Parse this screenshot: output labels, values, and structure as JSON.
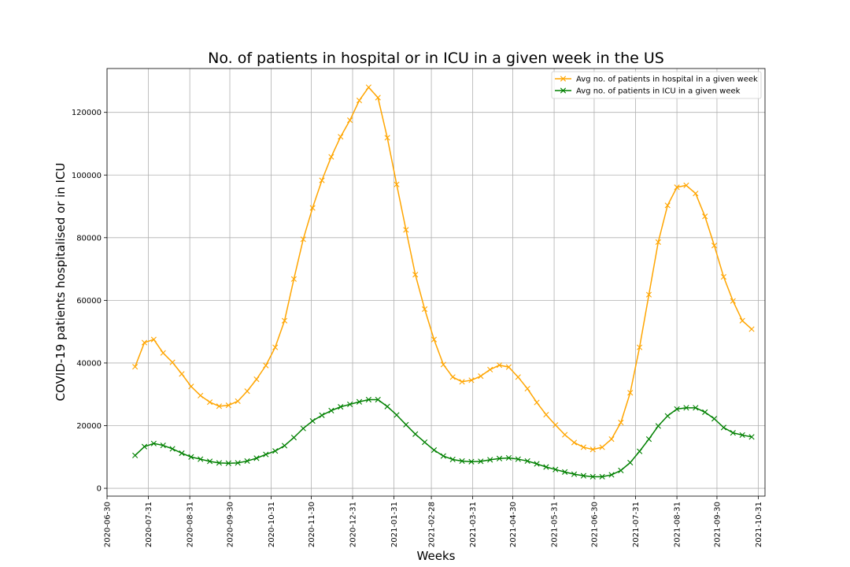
{
  "chart_data": {
    "type": "line",
    "title": "No. of patients in hospital or in ICU in a given week in the US",
    "xlabel": "Weeks",
    "ylabel": "COVID-19 patients hospitalised or in ICU",
    "x_ticks": [
      "2020-06-30",
      "2020-07-31",
      "2020-08-31",
      "2020-09-30",
      "2020-10-31",
      "2020-11-30",
      "2020-12-31",
      "2021-01-31",
      "2021-02-28",
      "2021-03-31",
      "2021-04-30",
      "2021-05-31",
      "2021-06-30",
      "2021-07-31",
      "2021-08-31",
      "2021-09-30",
      "2021-10-31"
    ],
    "y_ticks": [
      0,
      20000,
      40000,
      60000,
      80000,
      100000,
      120000
    ],
    "xlim": [
      "2020-06-30",
      "2021-11-05"
    ],
    "ylim": [
      -2500,
      134000
    ],
    "grid": true,
    "legend_position": "upper-right",
    "marker": "x",
    "x": [
      "2020-07-21",
      "2020-07-28",
      "2020-08-04",
      "2020-08-11",
      "2020-08-18",
      "2020-08-25",
      "2020-09-01",
      "2020-09-08",
      "2020-09-15",
      "2020-09-22",
      "2020-09-29",
      "2020-10-06",
      "2020-10-13",
      "2020-10-20",
      "2020-10-27",
      "2020-11-03",
      "2020-11-10",
      "2020-11-17",
      "2020-11-24",
      "2020-12-01",
      "2020-12-08",
      "2020-12-15",
      "2020-12-22",
      "2020-12-29",
      "2021-01-05",
      "2021-01-12",
      "2021-01-19",
      "2021-01-26",
      "2021-02-02",
      "2021-02-09",
      "2021-02-16",
      "2021-02-23",
      "2021-03-02",
      "2021-03-09",
      "2021-03-16",
      "2021-03-23",
      "2021-03-30",
      "2021-04-06",
      "2021-04-13",
      "2021-04-20",
      "2021-04-27",
      "2021-05-04",
      "2021-05-11",
      "2021-05-18",
      "2021-05-25",
      "2021-06-01",
      "2021-06-08",
      "2021-06-15",
      "2021-06-22",
      "2021-06-29",
      "2021-07-06",
      "2021-07-13",
      "2021-07-20",
      "2021-07-27",
      "2021-08-03",
      "2021-08-10",
      "2021-08-17",
      "2021-08-24",
      "2021-08-31",
      "2021-09-07",
      "2021-09-14",
      "2021-09-21",
      "2021-09-28",
      "2021-10-05",
      "2021-10-12",
      "2021-10-19",
      "2021-10-26"
    ],
    "series": [
      {
        "name": "Avg no. of patients in hospital in a given week",
        "color": "#ffa500",
        "values": [
          38800,
          46500,
          47500,
          43200,
          40200,
          36500,
          32500,
          29600,
          27500,
          26200,
          26500,
          27800,
          31000,
          34800,
          39200,
          45000,
          53500,
          66800,
          79500,
          89500,
          98300,
          105800,
          112200,
          117500,
          123800,
          128000,
          124700,
          111900,
          97000,
          82500,
          68200,
          57200,
          47500,
          39500,
          35500,
          34000,
          34500,
          35800,
          37900,
          39300,
          38700,
          35500,
          31800,
          27400,
          23500,
          20200,
          17100,
          14600,
          13100,
          12400,
          13100,
          15700,
          21000,
          30500,
          45000,
          61800,
          78600,
          90300,
          96100,
          96700,
          94100,
          86800,
          77500,
          67500,
          59800,
          53500,
          50800
        ]
      },
      {
        "name": "Avg no. of patients in ICU in a given week",
        "color": "#008000",
        "values": [
          10500,
          13300,
          14300,
          13700,
          12600,
          11200,
          10000,
          9300,
          8600,
          8100,
          8000,
          8100,
          8700,
          9600,
          10800,
          11900,
          13600,
          16200,
          19100,
          21500,
          23300,
          24800,
          26000,
          26800,
          27600,
          28300,
          28300,
          26100,
          23400,
          20300,
          17300,
          14700,
          12200,
          10300,
          9200,
          8700,
          8500,
          8600,
          9100,
          9500,
          9700,
          9300,
          8700,
          7800,
          6800,
          6000,
          5200,
          4500,
          4000,
          3700,
          3700,
          4300,
          5700,
          8200,
          11800,
          15700,
          19900,
          23100,
          25300,
          25700,
          25700,
          24300,
          22200,
          19400,
          17700,
          17000,
          16400
        ]
      }
    ]
  }
}
